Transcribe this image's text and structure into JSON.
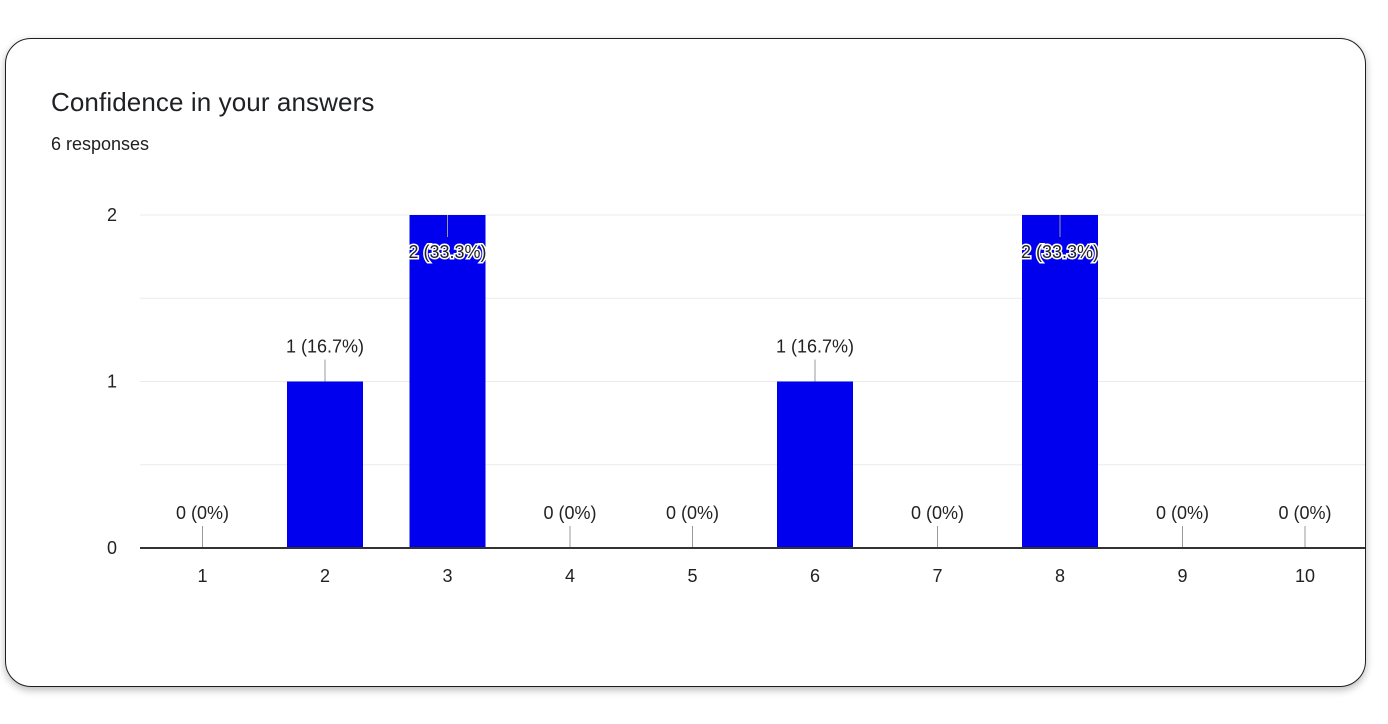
{
  "card": {
    "title": "Confidence in your answers",
    "subtitle": "6 responses"
  },
  "colors": {
    "bar": "#0000ee",
    "grid": "#ebebeb",
    "axis": "#333333",
    "leader": "#999999"
  },
  "chart_data": {
    "type": "bar",
    "title": "Confidence in your answers",
    "subtitle": "6 responses",
    "categories": [
      "1",
      "2",
      "3",
      "4",
      "5",
      "6",
      "7",
      "8",
      "9",
      "10"
    ],
    "values": [
      0,
      1,
      2,
      0,
      0,
      1,
      0,
      2,
      0,
      0
    ],
    "data_labels": [
      "0 (0%)",
      "1 (16.7%)",
      "2 (33.3%)",
      "0 (0%)",
      "0 (0%)",
      "1 (16.7%)",
      "0 (0%)",
      "2 (33.3%)",
      "0 (0%)",
      "0 (0%)"
    ],
    "yticks": [
      0,
      1,
      2
    ],
    "ylim": [
      0,
      2
    ],
    "grid": true,
    "legend": "none",
    "xlabel": "",
    "ylabel": ""
  }
}
